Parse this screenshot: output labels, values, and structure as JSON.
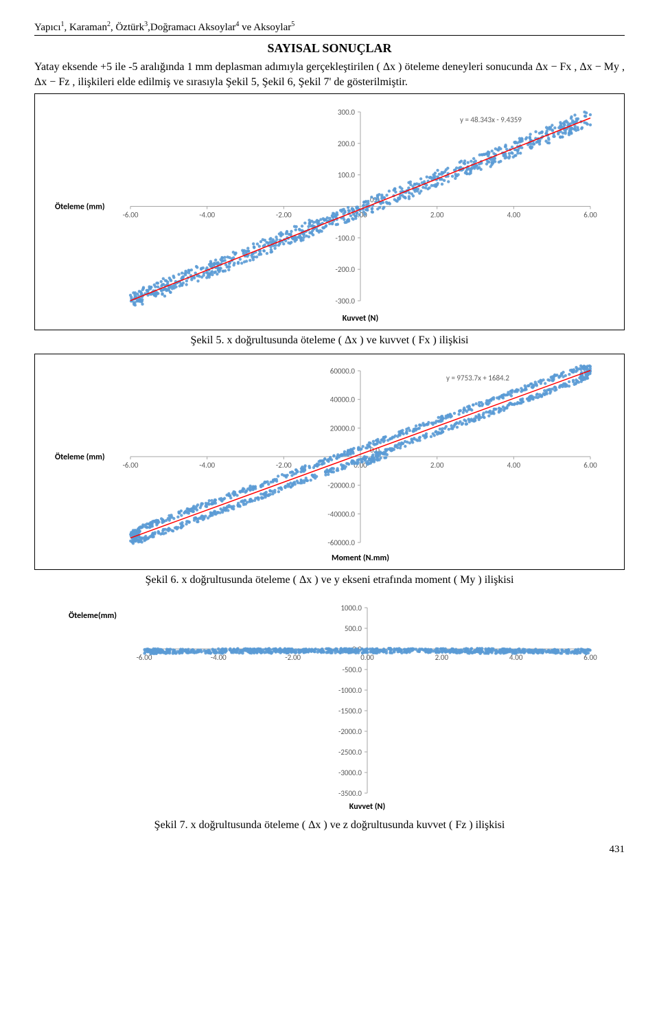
{
  "header": {
    "authors_html": "Yapıcı",
    "a1": "Yapıcı",
    "s1": "1",
    "a2": "Karaman",
    "s2": "2",
    "a3": "Öztürk",
    "s3": "3",
    "a4": "Doğramacı Aksoylar",
    "s4": "4",
    "a5": "Aksoylar",
    "s5": "5",
    "ve": " ve "
  },
  "section_title": "SAYISAL SONUÇLAR",
  "paragraph": "Yatay eksende +5 ile -5 aralığında 1 mm deplasman adımıyla gerçekleştirilen ( Δx ) öteleme deneyleri sonucunda Δx − Fx , Δx − My , Δx − Fz ,  ilişkileri elde edilmiş ve sırasıyla Şekil 5, Şekil 6, Şekil 7' de gösterilmiştir.",
  "caption5": "Şekil 5. x doğrultusunda öteleme ( Δx ) ve kuvvet ( Fx ) ilişkisi",
  "caption6": "Şekil 6. x doğrultusunda öteleme ( Δx ) ve y ekseni etrafında moment ( My ) ilişkisi",
  "caption7": "Şekil 7. x doğrultusunda öteleme ( Δx ) ve z doğrultusunda kuvvet ( Fz ) ilişkisi",
  "pagenum": "431",
  "chart5": {
    "type": "scatter-with-trendline",
    "y_axis_label": "Öteleme (mm)",
    "x_axis_label": "Kuvvet (N)",
    "equation": "y = 48.343x - 9.4359",
    "x_ticks": [
      "-6.00",
      "-4.00",
      "-2.00",
      "0.00",
      "2.00",
      "4.00",
      "6.00"
    ],
    "y_ticks": [
      "-300.0",
      "-200.0",
      "-100.0",
      "0.0",
      "100.0",
      "200.0",
      "300.0"
    ],
    "xlim": [
      -6,
      6
    ],
    "ylim": [
      -300,
      300
    ],
    "scatter_color": "#5b9bd5",
    "trend_color": "#ff0000",
    "trend_slope": 48.343,
    "trend_intercept": -9.4359,
    "band_width": 30,
    "axis_color": "#a6a6a6",
    "tick_mark_color": "#a6a6a6",
    "background": "#ffffff"
  },
  "chart6": {
    "type": "scatter-with-trendline",
    "y_axis_label": "Öteleme (mm)",
    "x_axis_label": "Moment (N.mm)",
    "equation": "y = 9753.7x + 1684.2",
    "x_ticks": [
      "-6.00",
      "-4.00",
      "-2.00",
      "0.00",
      "2.00",
      "4.00",
      "6.00"
    ],
    "y_ticks": [
      "-60000.0",
      "-40000.0",
      "-20000.0",
      "0.0",
      "20000.0",
      "40000.0",
      "60000.0"
    ],
    "xlim": [
      -6,
      6
    ],
    "ylim": [
      -60000,
      60000
    ],
    "scatter_color": "#5b9bd5",
    "trend_color": "#ff0000",
    "trend_slope": 9753.7,
    "trend_intercept": 1684.2,
    "band_width": 6000,
    "axis_color": "#a6a6a6",
    "background": "#ffffff"
  },
  "chart7": {
    "type": "scatter-flat",
    "y_axis_label": "Öteleme(mm)",
    "x_axis_label": "Kuvvet (N)",
    "x_ticks": [
      "-6.00",
      "-4.00",
      "-2.00",
      "0.00",
      "2.00",
      "4.00",
      "6.00"
    ],
    "y_ticks": [
      "-3500.0",
      "-3000.0",
      "-2500.0",
      "-2000.0",
      "-1500.0",
      "-1000.0",
      "-500.0",
      "0.0",
      "500.0",
      "1000.0"
    ],
    "xlim": [
      -6,
      6
    ],
    "ylim": [
      -3500,
      1000
    ],
    "scatter_color": "#5b9bd5",
    "axis_color": "#a6a6a6",
    "background": "#ffffff",
    "flat_y_center": -50,
    "flat_y_spread": 120
  }
}
